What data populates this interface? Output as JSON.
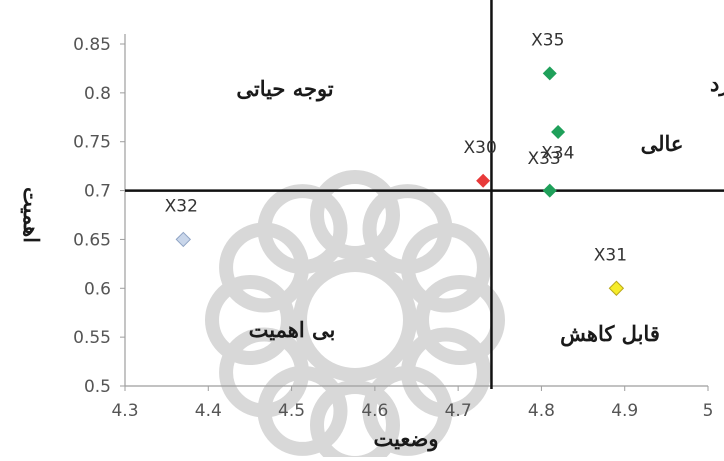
{
  "chart_data": {
    "type": "scatter",
    "title": "",
    "xlabel": "وضعیت",
    "ylabel": "اهمیت",
    "xlim": [
      4.3,
      5
    ],
    "ylim": [
      0.5,
      0.85
    ],
    "x_ticks": [
      "4.3",
      "4.4",
      "4.5",
      "4.6",
      "4.7",
      "4.8",
      "4.9",
      "5"
    ],
    "y_ticks": [
      "0.5",
      "0.55",
      "0.6",
      "0.65",
      "0.7",
      "0.75",
      "0.8",
      "0.85"
    ],
    "grid": false,
    "divider_x": 4.74,
    "divider_y": 0.7,
    "points": [
      {
        "label": "X35",
        "x": 4.81,
        "y": 0.82,
        "color": "#1fa05a"
      },
      {
        "label": "X33",
        "x": 4.82,
        "y": 0.76,
        "color": "#1fa05a"
      },
      {
        "label": "X34",
        "x": 4.81,
        "y": 0.7,
        "color": "#1fa05a"
      },
      {
        "label": "X30",
        "x": 4.73,
        "y": 0.71,
        "color": "#e83a3a"
      },
      {
        "label": "X32",
        "x": 4.37,
        "y": 0.65,
        "color": "#c9d6ea"
      },
      {
        "label": "X31",
        "x": 4.89,
        "y": 0.6,
        "color": "#f6ec2a"
      }
    ],
    "annotations": [
      {
        "id": "top-left",
        "text": "توجه حیاتی"
      },
      {
        "id": "top-right-1",
        "text": "تداوم عملکرد"
      },
      {
        "id": "top-right-2",
        "text": "عالی"
      },
      {
        "id": "bottom-left",
        "text": "بی اهمیت"
      },
      {
        "id": "bottom-right",
        "text": "قابل کاهش"
      }
    ]
  },
  "colors": {
    "axis": "#9e9e9e",
    "divider": "#111111",
    "watermark": "#d8d8d8"
  }
}
